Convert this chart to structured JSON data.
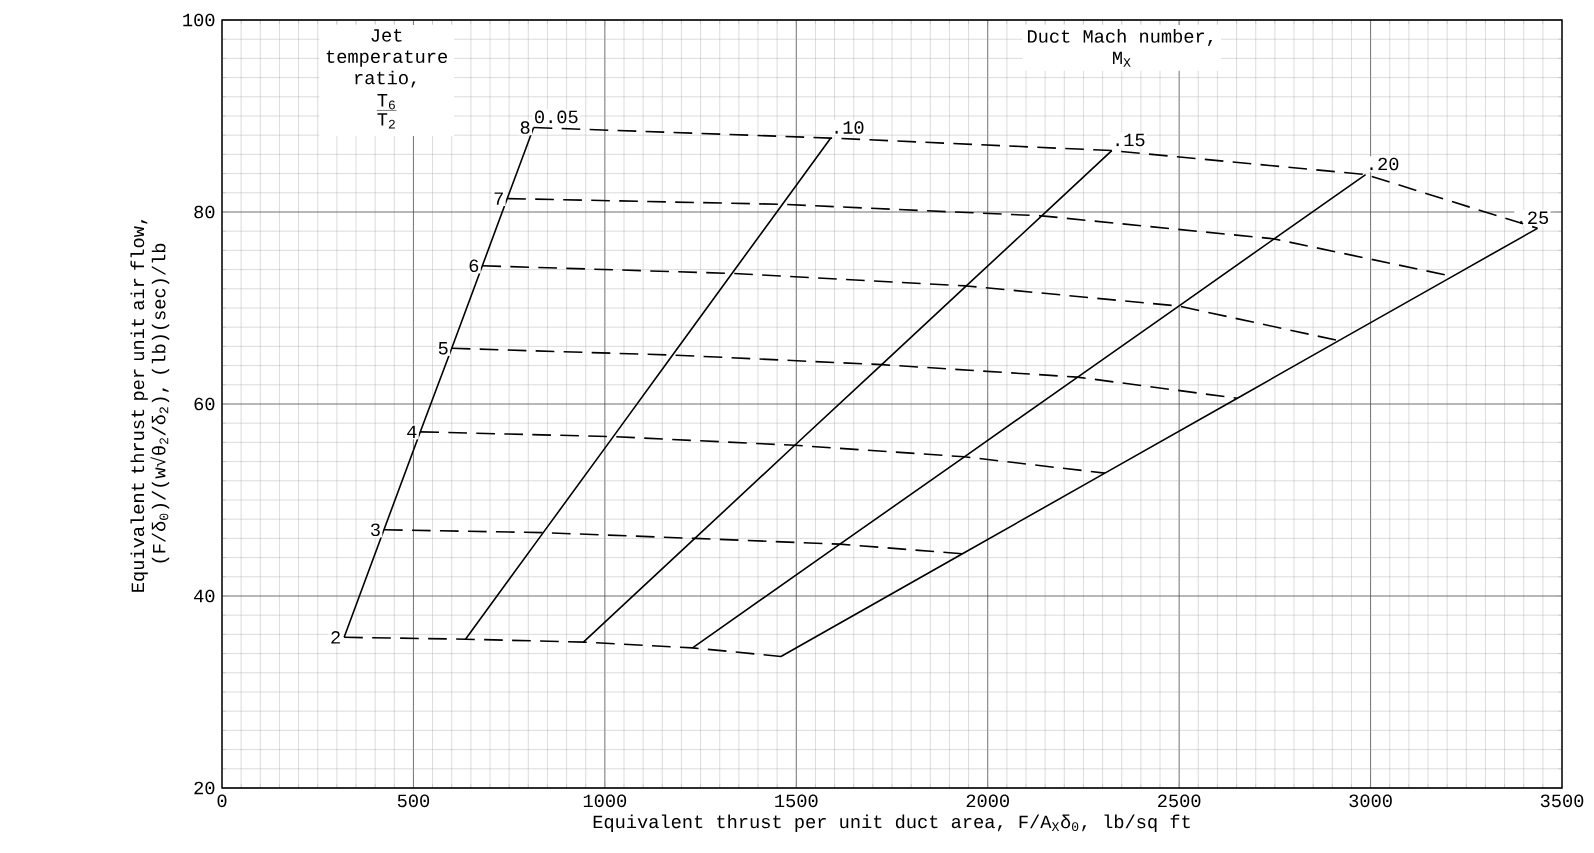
{
  "chart_data": {
    "type": "line",
    "xlabel": "Equivalent thrust per unit duct area, F/A$_{X}$δ$_{0}$, lb/sq ft",
    "ylabel": "Equivalent thrust per unit air flow, (F/δ$_{0}$)/(w√θ$_{2}$/δ$_{2}$), (lb)(sec)/lb",
    "xlim": [
      0,
      3500
    ],
    "ylim": [
      20,
      100
    ],
    "xticks": [
      0,
      500,
      1000,
      1500,
      2000,
      2500,
      3000,
      3500
    ],
    "yticks": [
      20,
      40,
      60,
      80,
      100
    ],
    "grid": true,
    "annotations": [
      "Jet temperature ratio,",
      "T$_{6}$",
      "T$_{2}$",
      "Duct Mach number,",
      "M$_{X}$"
    ],
    "series": [
      {
        "name": "0.05",
        "color": "#000000",
        "line_style": "solid",
        "x": [
          319,
          423,
          518,
          600,
          680,
          745,
          814
        ],
        "values": [
          35.7,
          46.9,
          57.1,
          65.8,
          74.4,
          81.4,
          88.8
        ]
      },
      {
        "name": ".10",
        "color": "#000000",
        "line_style": "solid",
        "x": [
          636,
          839,
          1022,
          1177,
          1332,
          1464,
          1590
        ],
        "values": [
          35.5,
          46.6,
          56.6,
          65.1,
          73.6,
          80.8,
          87.7
        ]
      },
      {
        "name": ".15",
        "color": "#000000",
        "line_style": "solid",
        "x": [
          944,
          1235,
          1496,
          1723,
          1944,
          2141,
          2324
        ],
        "values": [
          35.2,
          46.0,
          55.7,
          64.1,
          72.3,
          79.6,
          86.4
        ]
      },
      {
        "name": ".20",
        "color": "#000000",
        "line_style": "solid",
        "x": [
          1229,
          1614,
          1939,
          2235,
          2499,
          2748,
          2987
        ],
        "values": [
          34.6,
          45.4,
          54.5,
          62.8,
          70.2,
          77.2,
          83.9
        ]
      },
      {
        "name": ".25",
        "color": "#000000",
        "line_style": "solid",
        "x": [
          1460,
          1934,
          2306,
          2652,
          2917,
          3214,
          3436
        ],
        "values": [
          33.7,
          44.4,
          52.8,
          60.6,
          66.6,
          73.3,
          78.3
        ]
      },
      {
        "name": "2",
        "color": "#000000",
        "line_style": "dashed",
        "x": [
          319,
          636,
          944,
          1229,
          1460
        ],
        "values": [
          35.7,
          35.5,
          35.2,
          34.6,
          33.7
        ]
      },
      {
        "name": "3",
        "color": "#000000",
        "line_style": "dashed",
        "x": [
          423,
          839,
          1235,
          1614,
          1934
        ],
        "values": [
          46.9,
          46.6,
          46.0,
          45.4,
          44.4
        ]
      },
      {
        "name": "4",
        "color": "#000000",
        "line_style": "dashed",
        "x": [
          518,
          1022,
          1496,
          1939,
          2306
        ],
        "values": [
          57.1,
          56.6,
          55.7,
          54.5,
          52.8
        ]
      },
      {
        "name": "5",
        "color": "#000000",
        "line_style": "dashed",
        "x": [
          600,
          1177,
          1723,
          2235,
          2652
        ],
        "values": [
          65.8,
          65.1,
          64.1,
          62.8,
          60.6
        ]
      },
      {
        "name": "6",
        "color": "#000000",
        "line_style": "dashed",
        "x": [
          680,
          1332,
          1944,
          2499,
          2917
        ],
        "values": [
          74.4,
          73.6,
          72.3,
          70.2,
          66.6
        ]
      },
      {
        "name": "7",
        "color": "#000000",
        "line_style": "dashed",
        "x": [
          745,
          1464,
          2141,
          2748,
          3214
        ],
        "values": [
          81.4,
          80.8,
          79.6,
          77.2,
          73.3
        ]
      },
      {
        "name": "8",
        "color": "#000000",
        "line_style": "dashed",
        "x": [
          814,
          1590,
          2324,
          2987,
          3436
        ],
        "values": [
          88.8,
          87.7,
          86.4,
          83.9,
          78.3
        ]
      }
    ]
  }
}
